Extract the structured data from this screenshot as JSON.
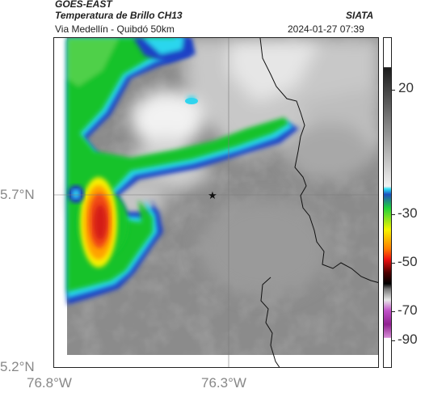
{
  "header": {
    "satellite": "GOES-EAST",
    "product": "Temperatura de Brillo CH13",
    "location": "Via Medellín - Quibdó 50km",
    "source": "SIATA",
    "timestamp": "2024-01-27 07:39"
  },
  "axes": {
    "lat_ticks": [
      "5.7°N",
      "5.2°N"
    ],
    "lon_ticks": [
      "76.8°W",
      "76.3°W"
    ]
  },
  "colorbar": {
    "ticks": [
      "20",
      "-30",
      "-50",
      "-70",
      "-90"
    ]
  },
  "marker": {
    "symbol": "★"
  },
  "colors": {
    "cold_top_red": "#e8281a",
    "deep_convection_yellow": "#ffff00",
    "convection_green": "#12c42a",
    "cloud_edge_blue": "#1a4fd0",
    "cyan": "#2ed8f0",
    "background_gray": "#8a8a8a"
  }
}
